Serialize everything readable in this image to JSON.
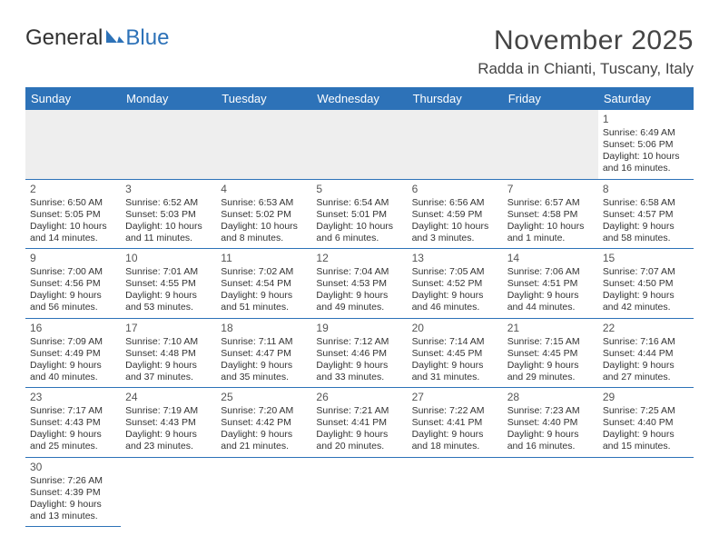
{
  "logo": {
    "part1": "General",
    "part2": "Blue"
  },
  "title": {
    "month": "November 2025",
    "location": "Radda in Chianti, Tuscany, Italy"
  },
  "colors": {
    "header_bg": "#2d72b8",
    "header_text": "#ffffff",
    "rule": "#2d72b8",
    "empty_bg": "#eeeeee"
  },
  "layout": {
    "type": "calendar",
    "cols": 7,
    "rows": 6,
    "first_weekday": "Sunday",
    "first_day_col": 6,
    "days_in_month": 30
  },
  "weekdays": [
    "Sunday",
    "Monday",
    "Tuesday",
    "Wednesday",
    "Thursday",
    "Friday",
    "Saturday"
  ],
  "labels": {
    "sunrise": "Sunrise:",
    "sunset": "Sunset:",
    "daylight": "Daylight:"
  },
  "days": [
    {
      "n": 1,
      "sunrise": "6:49 AM",
      "sunset": "5:06 PM",
      "day_h": 10,
      "day_m": 16
    },
    {
      "n": 2,
      "sunrise": "6:50 AM",
      "sunset": "5:05 PM",
      "day_h": 10,
      "day_m": 14
    },
    {
      "n": 3,
      "sunrise": "6:52 AM",
      "sunset": "5:03 PM",
      "day_h": 10,
      "day_m": 11
    },
    {
      "n": 4,
      "sunrise": "6:53 AM",
      "sunset": "5:02 PM",
      "day_h": 10,
      "day_m": 8
    },
    {
      "n": 5,
      "sunrise": "6:54 AM",
      "sunset": "5:01 PM",
      "day_h": 10,
      "day_m": 6
    },
    {
      "n": 6,
      "sunrise": "6:56 AM",
      "sunset": "4:59 PM",
      "day_h": 10,
      "day_m": 3
    },
    {
      "n": 7,
      "sunrise": "6:57 AM",
      "sunset": "4:58 PM",
      "day_h": 10,
      "day_m": 1
    },
    {
      "n": 8,
      "sunrise": "6:58 AM",
      "sunset": "4:57 PM",
      "day_h": 9,
      "day_m": 58
    },
    {
      "n": 9,
      "sunrise": "7:00 AM",
      "sunset": "4:56 PM",
      "day_h": 9,
      "day_m": 56
    },
    {
      "n": 10,
      "sunrise": "7:01 AM",
      "sunset": "4:55 PM",
      "day_h": 9,
      "day_m": 53
    },
    {
      "n": 11,
      "sunrise": "7:02 AM",
      "sunset": "4:54 PM",
      "day_h": 9,
      "day_m": 51
    },
    {
      "n": 12,
      "sunrise": "7:04 AM",
      "sunset": "4:53 PM",
      "day_h": 9,
      "day_m": 49
    },
    {
      "n": 13,
      "sunrise": "7:05 AM",
      "sunset": "4:52 PM",
      "day_h": 9,
      "day_m": 46
    },
    {
      "n": 14,
      "sunrise": "7:06 AM",
      "sunset": "4:51 PM",
      "day_h": 9,
      "day_m": 44
    },
    {
      "n": 15,
      "sunrise": "7:07 AM",
      "sunset": "4:50 PM",
      "day_h": 9,
      "day_m": 42
    },
    {
      "n": 16,
      "sunrise": "7:09 AM",
      "sunset": "4:49 PM",
      "day_h": 9,
      "day_m": 40
    },
    {
      "n": 17,
      "sunrise": "7:10 AM",
      "sunset": "4:48 PM",
      "day_h": 9,
      "day_m": 37
    },
    {
      "n": 18,
      "sunrise": "7:11 AM",
      "sunset": "4:47 PM",
      "day_h": 9,
      "day_m": 35
    },
    {
      "n": 19,
      "sunrise": "7:12 AM",
      "sunset": "4:46 PM",
      "day_h": 9,
      "day_m": 33
    },
    {
      "n": 20,
      "sunrise": "7:14 AM",
      "sunset": "4:45 PM",
      "day_h": 9,
      "day_m": 31
    },
    {
      "n": 21,
      "sunrise": "7:15 AM",
      "sunset": "4:45 PM",
      "day_h": 9,
      "day_m": 29
    },
    {
      "n": 22,
      "sunrise": "7:16 AM",
      "sunset": "4:44 PM",
      "day_h": 9,
      "day_m": 27
    },
    {
      "n": 23,
      "sunrise": "7:17 AM",
      "sunset": "4:43 PM",
      "day_h": 9,
      "day_m": 25
    },
    {
      "n": 24,
      "sunrise": "7:19 AM",
      "sunset": "4:43 PM",
      "day_h": 9,
      "day_m": 23
    },
    {
      "n": 25,
      "sunrise": "7:20 AM",
      "sunset": "4:42 PM",
      "day_h": 9,
      "day_m": 21
    },
    {
      "n": 26,
      "sunrise": "7:21 AM",
      "sunset": "4:41 PM",
      "day_h": 9,
      "day_m": 20
    },
    {
      "n": 27,
      "sunrise": "7:22 AM",
      "sunset": "4:41 PM",
      "day_h": 9,
      "day_m": 18
    },
    {
      "n": 28,
      "sunrise": "7:23 AM",
      "sunset": "4:40 PM",
      "day_h": 9,
      "day_m": 16
    },
    {
      "n": 29,
      "sunrise": "7:25 AM",
      "sunset": "4:40 PM",
      "day_h": 9,
      "day_m": 15
    },
    {
      "n": 30,
      "sunrise": "7:26 AM",
      "sunset": "4:39 PM",
      "day_h": 9,
      "day_m": 13
    }
  ]
}
